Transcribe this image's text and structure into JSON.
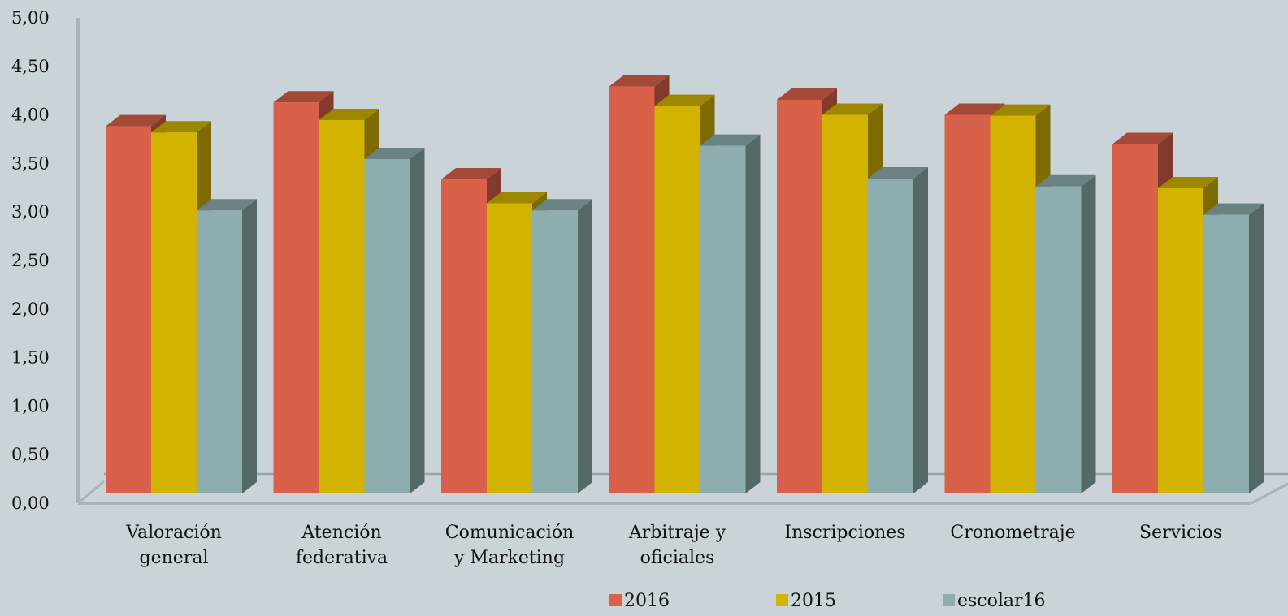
{
  "chart_data": {
    "type": "bar",
    "style": "3d-clustered-column",
    "categories": [
      [
        "Valoración",
        "general"
      ],
      [
        "Atención",
        "federativa"
      ],
      [
        "Comunicación",
        "y Marketing"
      ],
      [
        "Arbitraje y",
        "oficiales"
      ],
      [
        "Inscripciones"
      ],
      [
        "Cronometraje"
      ],
      [
        "Servicios"
      ]
    ],
    "series": [
      {
        "name": "2016",
        "color": "#d9614a",
        "values": [
          4.15,
          4.42,
          3.55,
          4.6,
          4.45,
          4.28,
          3.95
        ]
      },
      {
        "name": "2015",
        "color": "#d1b300",
        "values": [
          4.08,
          4.22,
          3.28,
          4.38,
          4.28,
          4.27,
          3.45
        ]
      },
      {
        "name": "escolar16",
        "color": "#8eadae",
        "values": [
          3.2,
          3.78,
          3.2,
          3.93,
          3.56,
          3.47,
          3.15
        ]
      }
    ],
    "y_ticks": [
      "0,00",
      "0,50",
      "1,00",
      "1,50",
      "2,00",
      "2,50",
      "3,00",
      "3,50",
      "4,00",
      "4,50",
      "5,00"
    ],
    "ylim": [
      0,
      5
    ],
    "grid": false,
    "legend": "bottom"
  }
}
